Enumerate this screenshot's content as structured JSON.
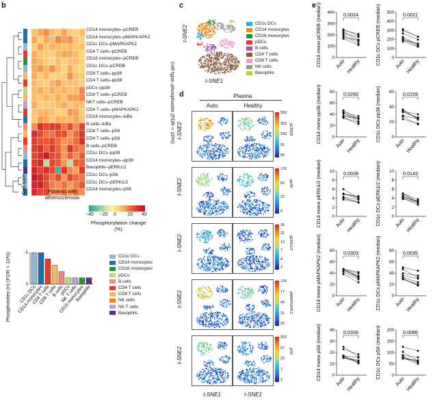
{
  "panels": {
    "b_label": "b",
    "c_label": "c",
    "d_label": "d",
    "e_label": "e"
  },
  "heatmap": {
    "rows": [
      "CD14 monocytes–pCREB",
      "CD14 monocytes–pMAPKAPK2",
      "CD1c DCs–pMAPKAPK2",
      "CD4 T cells–pCREB",
      "CD16 monocytes–pCREB",
      "CD1c DCs–pCREB",
      "CD8 T cells–pp38",
      "CD4 T cells–pp38",
      "pDCs–pp38",
      "CD8 T cells–pCREB",
      "NKT cells–pCREB",
      "CD4 T cells–pMAPKAPK2",
      "CD14 monocytes–IκBα",
      "B cells–IκBα",
      "CD8 T cells–pS6",
      "CD4 T cells–pS6",
      "B cells–pCREB",
      "CD1c DCs–pp38",
      "CD14 monocytes–pp38",
      "Basophils–pERK1/2",
      "CD1c DCs–pS6",
      "CD1c DCs–pERK1/2",
      "CD14 monocytes–pS6"
    ],
    "right_label": "Cell type–phosphosite (FDR < 10%)",
    "cell_type_label": "Cell type",
    "patients_label": "Patients with atherosclerosis",
    "colorbar_title": "Phosphorylation change (%)",
    "colorbar_ticks": [
      "−40",
      "−20",
      "0",
      "20",
      "40"
    ]
  },
  "barchart": {
    "ylabel": "Phosphosites (n) (FDR < 10%)",
    "categories": [
      "CD1c DCs",
      "CD14 monocytes",
      "CD4 T cells",
      "CD8 T cells",
      "B cells",
      "pDCs",
      "NK T cells",
      "CD16 monocytes",
      "Basophils"
    ],
    "values": [
      5,
      5,
      4,
      3,
      2,
      1,
      1,
      1,
      1
    ],
    "legend": [
      "CD1c DCs",
      "CD14 monocytes",
      "CD16 monocytes",
      "pDCs",
      "B cells",
      "CD4 T cells",
      "CD8 T cells",
      "NK cells",
      "NK T cells",
      "Basophils"
    ],
    "colors": [
      "#8fb8d6",
      "#1f6fa8",
      "#2e8b3a",
      "#bcd87a",
      "#f08a7a",
      "#e23a2e",
      "#f2b866",
      "#f07f1a",
      "#b9a3cf",
      "#5a2d8a"
    ]
  },
  "tsne_c": {
    "xlabel": "t-SNE1",
    "ylabel": "t-SNE2",
    "legend": [
      "CD1c DCs",
      "CD14 monocytes",
      "CD16 monocytes",
      "pDCs",
      "B cells",
      "CD4 T cells",
      "CD8 T cells",
      "NK cells",
      "Basophils"
    ],
    "colors": [
      "#39a9e0",
      "#f08a1a",
      "#2e8b3a",
      "#e23a2e",
      "#9b59b6",
      "#8b5a3c",
      "#f29ac8",
      "#999999",
      "#c8c832"
    ]
  },
  "tsne_d": {
    "title": "Plasma",
    "col_auto": "Auto",
    "col_healthy": "Healthy",
    "ylabel": "t-SNE2",
    "xlabel": "t-SNE1",
    "rows": [
      {
        "marker": "pCREB",
        "ticks": [
          "550",
          "302",
          "166",
          "91",
          "50"
        ]
      },
      {
        "marker": "pp38",
        "ticks": [
          "120",
          "52",
          "23",
          "9"
        ]
      },
      {
        "marker": "pERK1/2",
        "ticks": [
          "36",
          "22",
          "13",
          "7",
          "4",
          "2"
        ]
      },
      {
        "marker": "pMAPKAPK2",
        "ticks": [
          "120",
          "77",
          "49",
          "31",
          "20"
        ]
      },
      {
        "marker": "pS6",
        "ticks": [
          "202",
          "67",
          "23",
          "7",
          "2"
        ]
      }
    ]
  },
  "paired": {
    "x_auto": "Auto",
    "x_healthy": "Healthy",
    "plots": [
      {
        "ylabel": "CD14 mono pCREB (median)",
        "p": "0.0024",
        "yticks": [
          "400",
          "300",
          "200",
          "100",
          "0"
        ],
        "ymax": 400
      },
      {
        "ylabel": "CD1c DCs pCREB (median)",
        "p": "0.0021",
        "yticks": [
          "500",
          "400",
          "300",
          "200",
          "100",
          "0"
        ],
        "ymax": 500
      },
      {
        "ylabel": "CD14 mono pp38 (median)",
        "p": "0.0260",
        "yticks": [
          "80",
          "60",
          "40",
          "20",
          "0"
        ],
        "ymax": 80
      },
      {
        "ylabel": "CD1c DCs pp38 (median)",
        "p": "0.0159",
        "yticks": [
          "60",
          "40",
          "20",
          "0"
        ],
        "ymax": 60
      },
      {
        "ylabel": "CD14 mono pERK1/2 (median)",
        "p": "0.0039",
        "yticks": [
          "10",
          "8",
          "6",
          "4",
          "2",
          "0"
        ],
        "ymax": 10
      },
      {
        "ylabel": "CD1c DCs pERK1/2 (median)",
        "p": "0.0143",
        "yticks": [
          "10",
          "8",
          "6",
          "4",
          "2",
          "0"
        ],
        "ymax": 10
      },
      {
        "ylabel": "CD14 mono pMAPKAPK2 (median)",
        "p": "0.0303",
        "yticks": [
          "80",
          "60",
          "40",
          "20",
          "0"
        ],
        "ymax": 80
      },
      {
        "ylabel": "CD1c DCs pMAPKAPK2 (median)",
        "p": "0.0035",
        "yticks": [
          "80",
          "60",
          "40",
          "20",
          "0"
        ],
        "ymax": 80
      },
      {
        "ylabel": "CD14 mono pS6 (median)",
        "p": "0.0336",
        "yticks": [
          "40",
          "30",
          "20",
          "10",
          "0"
        ],
        "ymax": 40
      },
      {
        "ylabel": "CD1c DCs pS6 (median)",
        "p": "0.0086",
        "yticks": [
          "200",
          "150",
          "100",
          "50",
          "0"
        ],
        "ymax": 200
      }
    ]
  },
  "chart_data": {
    "type": "bar",
    "title": "",
    "categories": [
      "CD1c DCs",
      "CD14 monocytes",
      "CD4 T cells",
      "CD8 T cells",
      "B cells",
      "pDCs",
      "NK T cells",
      "CD16 monocytes",
      "Basophils"
    ],
    "values": [
      5,
      5,
      4,
      3,
      2,
      1,
      1,
      1,
      1
    ],
    "xlabel": "",
    "ylabel": "Phosphosites (n) (FDR < 10%)",
    "ylim": [
      0,
      5
    ]
  }
}
